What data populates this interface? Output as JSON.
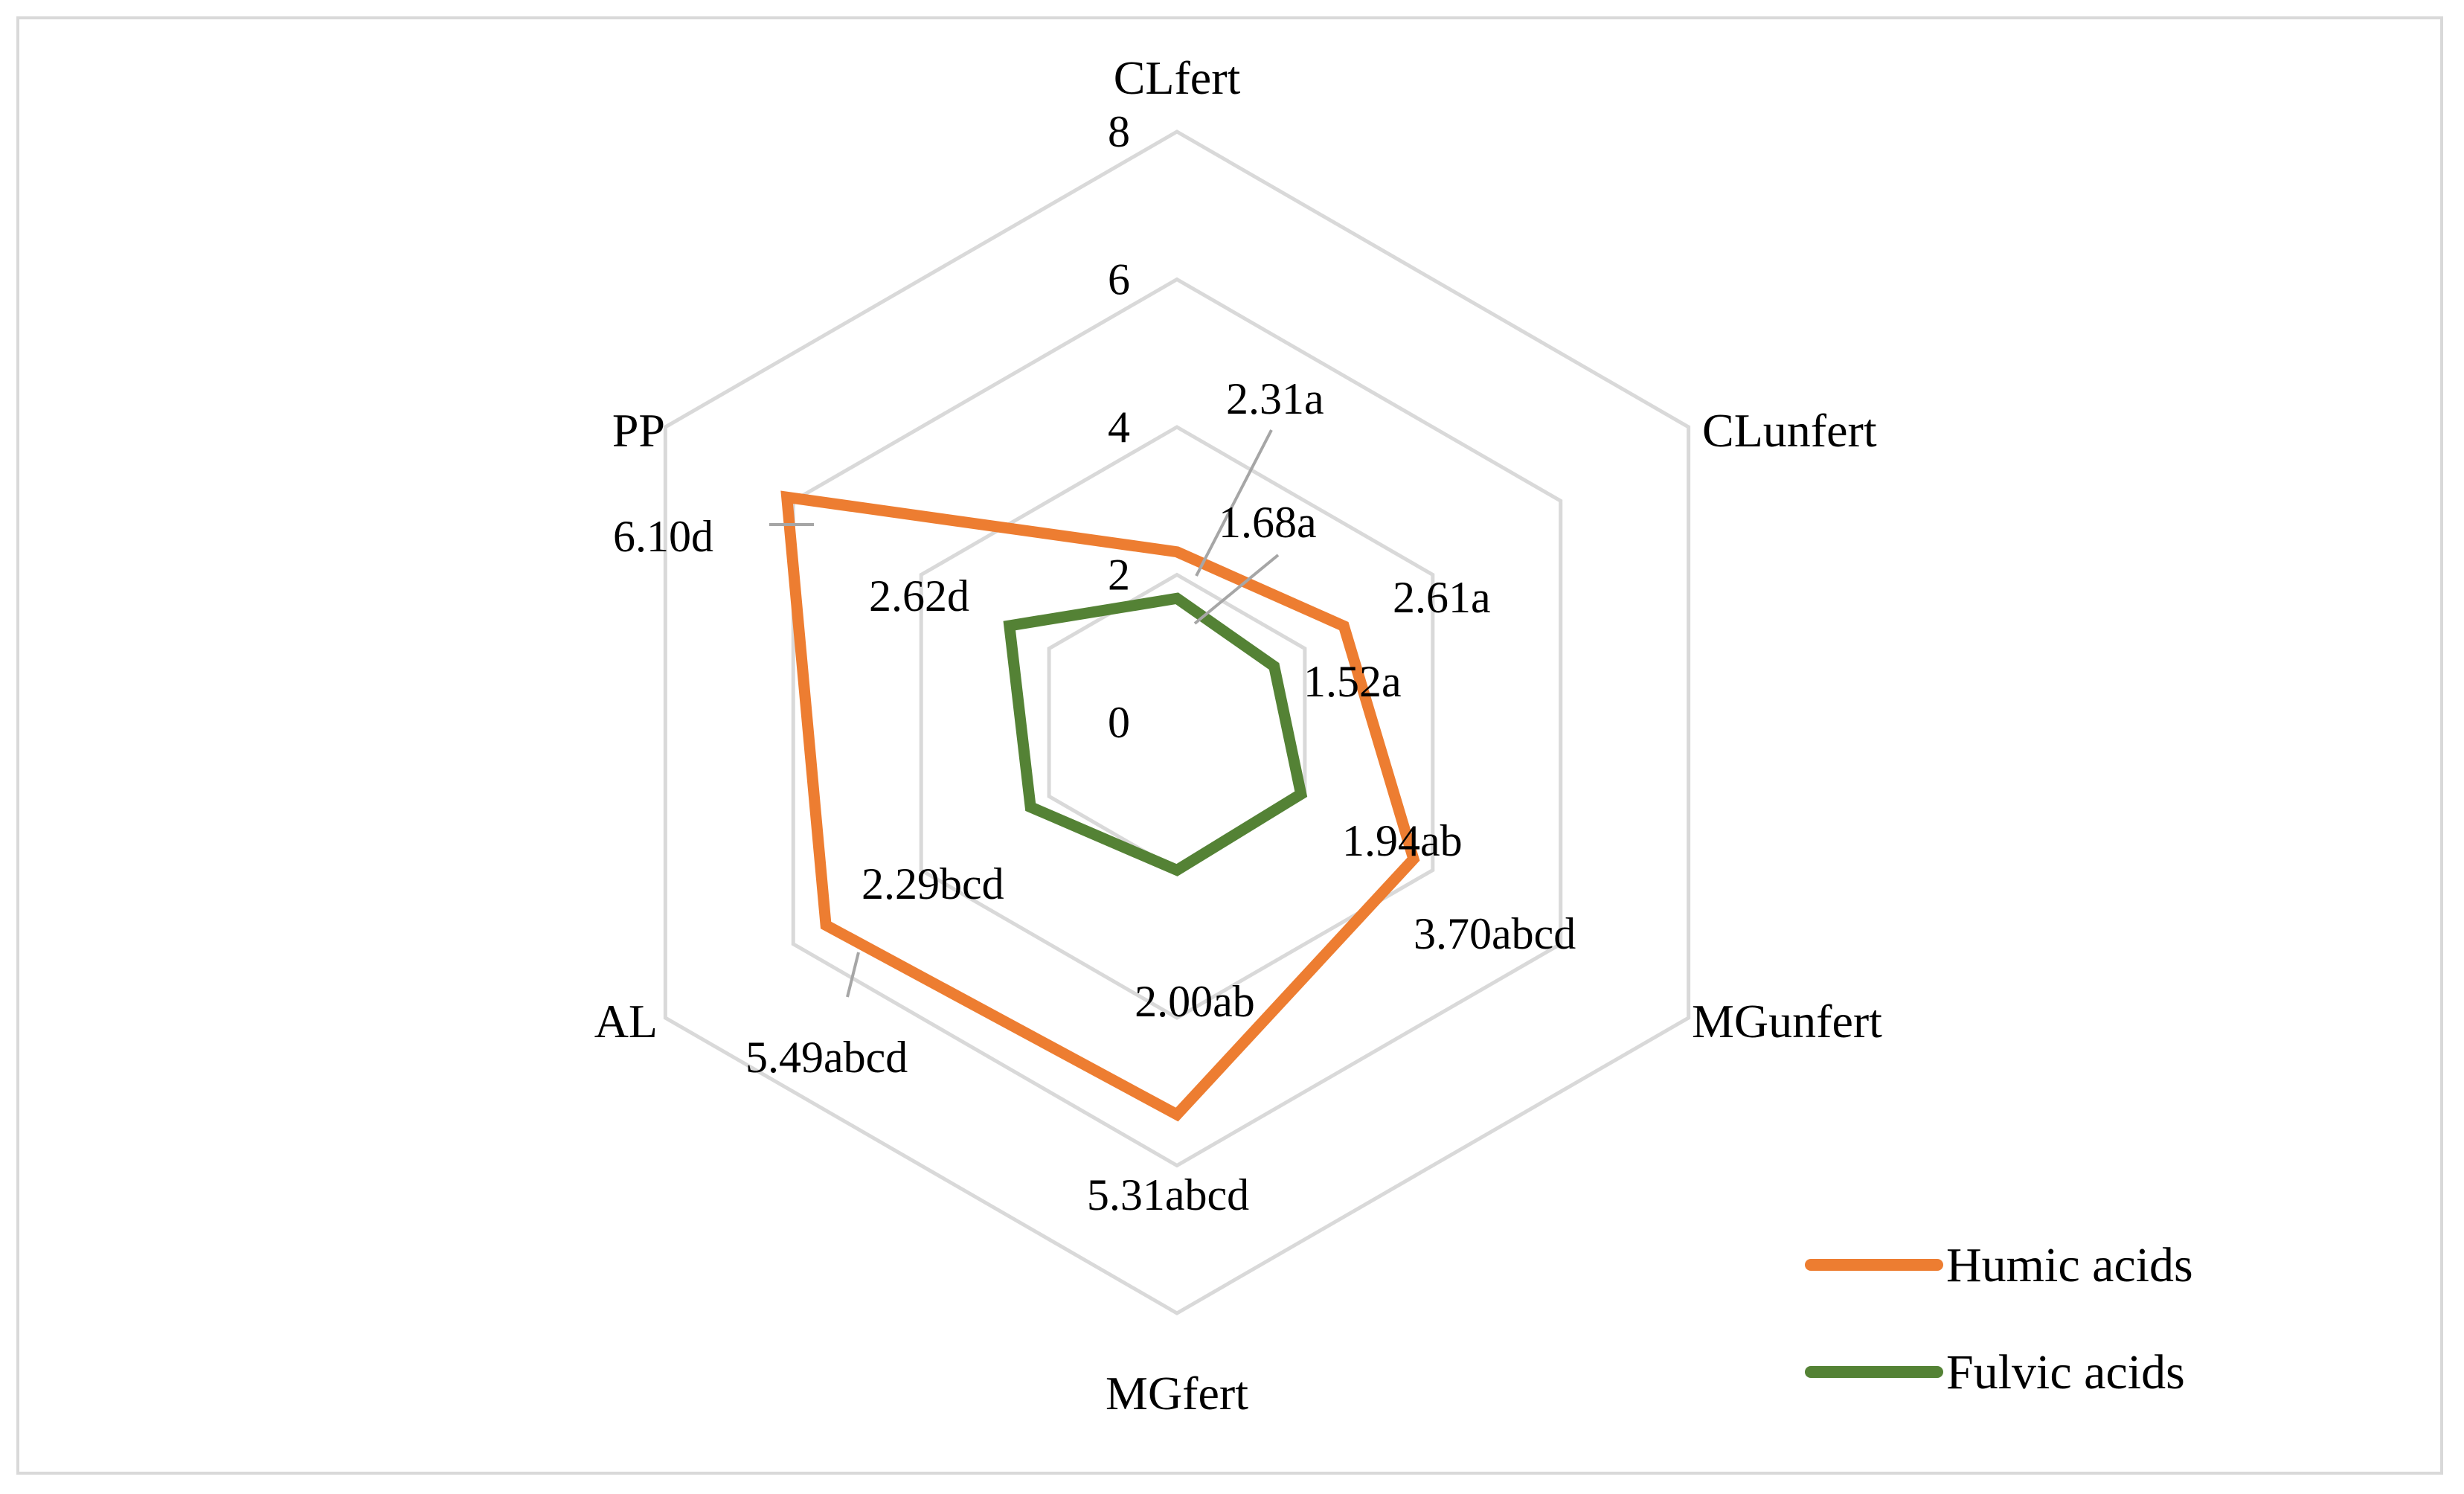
{
  "chart_data": {
    "type": "radar",
    "categories": [
      "CLfert",
      "CLunfert",
      "MGunfert",
      "MGfert",
      "AL",
      "PP"
    ],
    "radial_ticks": [
      "0",
      "2",
      "4",
      "6",
      "8"
    ],
    "rlim": [
      0,
      8
    ],
    "series": [
      {
        "name": "Humic acids",
        "color": "#ed7d31",
        "values": [
          2.31,
          2.61,
          3.7,
          5.31,
          5.49,
          6.1
        ],
        "labels": [
          "2.31a",
          "2.61a",
          "3.70abcd",
          "5.31abcd",
          "5.49abcd",
          "6.10d"
        ]
      },
      {
        "name": "Fulvic acids",
        "color": "#548235",
        "values": [
          1.68,
          1.52,
          1.94,
          2.0,
          2.29,
          2.62
        ],
        "labels": [
          "1.68a",
          "1.52a",
          "1.94ab",
          "2.00ab",
          "2.29bcd",
          "2.62d"
        ]
      }
    ],
    "grid": true,
    "grid_color": "#d9d9d9",
    "legend_position": "bottom-right"
  }
}
